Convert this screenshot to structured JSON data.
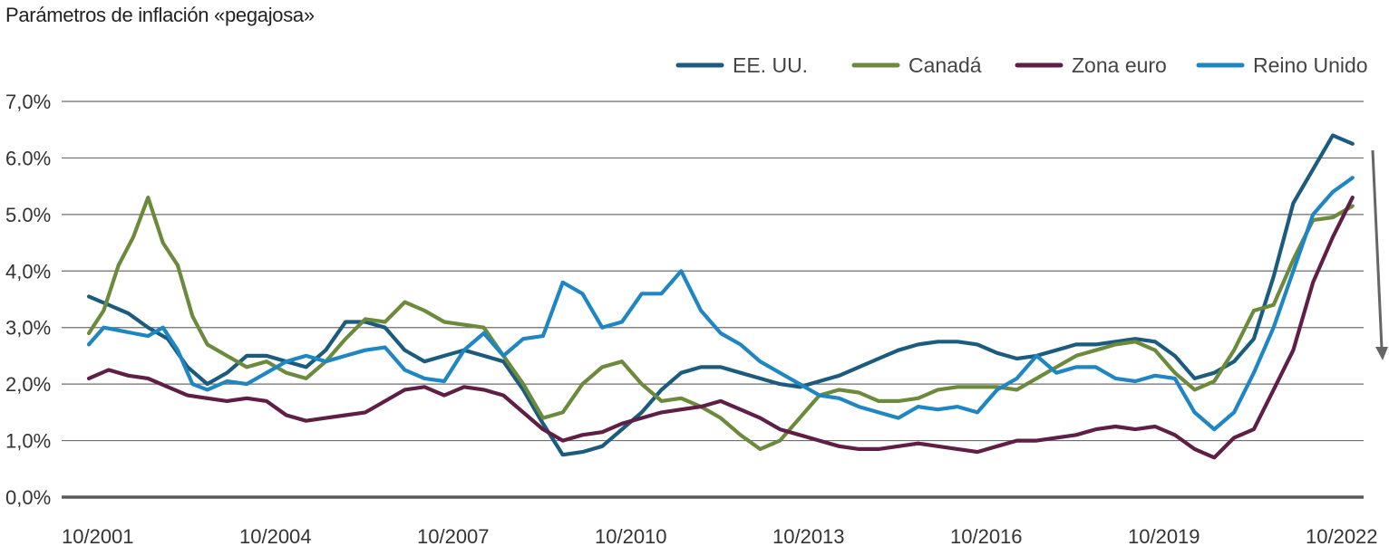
{
  "chart_data": {
    "type": "line",
    "title": "Parámetros de inflación «pegajosa»",
    "xlabel": "",
    "ylabel": "",
    "ylim": [
      0,
      7
    ],
    "y_ticks": [
      "0,0%",
      "1,0%",
      "2,0%",
      "3,0%",
      "4,0%",
      "5.0%",
      "6.0%",
      "7,0%"
    ],
    "x_ticks": [
      "10/2001",
      "10/2004",
      "10/2007",
      "10/2010",
      "10/2013",
      "10/2016",
      "10/2019",
      "10/2022"
    ],
    "grid": "horizontal",
    "legend_position": "top-right",
    "annotations": [
      "down-arrow"
    ],
    "series": [
      {
        "name": "EE. UU.",
        "color": "#1b5c7e",
        "points": [
          [
            "2001-10",
            3.55
          ],
          [
            "2002-02",
            3.4
          ],
          [
            "2002-06",
            3.25
          ],
          [
            "2002-10",
            3.0
          ],
          [
            "2003-02",
            2.8
          ],
          [
            "2003-06",
            2.3
          ],
          [
            "2003-10",
            2.0
          ],
          [
            "2004-02",
            2.2
          ],
          [
            "2004-06",
            2.5
          ],
          [
            "2004-10",
            2.5
          ],
          [
            "2005-02",
            2.4
          ],
          [
            "2005-06",
            2.3
          ],
          [
            "2005-10",
            2.6
          ],
          [
            "2006-02",
            3.1
          ],
          [
            "2006-06",
            3.1
          ],
          [
            "2006-10",
            3.0
          ],
          [
            "2007-02",
            2.6
          ],
          [
            "2007-06",
            2.4
          ],
          [
            "2007-10",
            2.5
          ],
          [
            "2008-02",
            2.6
          ],
          [
            "2008-06",
            2.5
          ],
          [
            "2008-10",
            2.4
          ],
          [
            "2009-02",
            1.9
          ],
          [
            "2009-06",
            1.3
          ],
          [
            "2009-10",
            0.75
          ],
          [
            "2010-02",
            0.8
          ],
          [
            "2010-06",
            0.9
          ],
          [
            "2010-10",
            1.2
          ],
          [
            "2011-02",
            1.5
          ],
          [
            "2011-06",
            1.9
          ],
          [
            "2011-10",
            2.2
          ],
          [
            "2012-02",
            2.3
          ],
          [
            "2012-06",
            2.3
          ],
          [
            "2012-10",
            2.2
          ],
          [
            "2013-02",
            2.1
          ],
          [
            "2013-06",
            2.0
          ],
          [
            "2013-10",
            1.95
          ],
          [
            "2014-02",
            2.05
          ],
          [
            "2014-06",
            2.15
          ],
          [
            "2014-10",
            2.3
          ],
          [
            "2015-02",
            2.45
          ],
          [
            "2015-06",
            2.6
          ],
          [
            "2015-10",
            2.7
          ],
          [
            "2016-02",
            2.75
          ],
          [
            "2016-06",
            2.75
          ],
          [
            "2016-10",
            2.7
          ],
          [
            "2017-02",
            2.55
          ],
          [
            "2017-06",
            2.45
          ],
          [
            "2017-10",
            2.5
          ],
          [
            "2018-02",
            2.6
          ],
          [
            "2018-06",
            2.7
          ],
          [
            "2018-10",
            2.7
          ],
          [
            "2019-02",
            2.75
          ],
          [
            "2019-06",
            2.8
          ],
          [
            "2019-10",
            2.75
          ],
          [
            "2020-02",
            2.5
          ],
          [
            "2020-06",
            2.1
          ],
          [
            "2020-10",
            2.2
          ],
          [
            "2021-02",
            2.4
          ],
          [
            "2021-06",
            2.8
          ],
          [
            "2021-10",
            3.9
          ],
          [
            "2022-02",
            5.2
          ],
          [
            "2022-06",
            5.8
          ],
          [
            "2022-10",
            6.4
          ],
          [
            "2023-02",
            6.25
          ]
        ]
      },
      {
        "name": "Canadá",
        "color": "#6b8a3c",
        "points": [
          [
            "2001-10",
            2.9
          ],
          [
            "2002-01",
            3.3
          ],
          [
            "2002-04",
            4.1
          ],
          [
            "2002-07",
            4.6
          ],
          [
            "2002-10",
            5.3
          ],
          [
            "2003-01",
            4.5
          ],
          [
            "2003-04",
            4.1
          ],
          [
            "2003-07",
            3.2
          ],
          [
            "2003-10",
            2.7
          ],
          [
            "2004-02",
            2.5
          ],
          [
            "2004-06",
            2.3
          ],
          [
            "2004-10",
            2.4
          ],
          [
            "2005-02",
            2.2
          ],
          [
            "2005-06",
            2.1
          ],
          [
            "2005-10",
            2.4
          ],
          [
            "2006-02",
            2.8
          ],
          [
            "2006-06",
            3.15
          ],
          [
            "2006-10",
            3.1
          ],
          [
            "2007-02",
            3.45
          ],
          [
            "2007-06",
            3.3
          ],
          [
            "2007-10",
            3.1
          ],
          [
            "2008-02",
            3.05
          ],
          [
            "2008-06",
            3.0
          ],
          [
            "2008-10",
            2.5
          ],
          [
            "2009-02",
            2.0
          ],
          [
            "2009-06",
            1.4
          ],
          [
            "2009-10",
            1.5
          ],
          [
            "2010-02",
            2.0
          ],
          [
            "2010-06",
            2.3
          ],
          [
            "2010-10",
            2.4
          ],
          [
            "2011-02",
            2.0
          ],
          [
            "2011-06",
            1.7
          ],
          [
            "2011-10",
            1.75
          ],
          [
            "2012-02",
            1.6
          ],
          [
            "2012-06",
            1.4
          ],
          [
            "2012-10",
            1.1
          ],
          [
            "2013-02",
            0.85
          ],
          [
            "2013-06",
            1.0
          ],
          [
            "2013-10",
            1.4
          ],
          [
            "2014-02",
            1.8
          ],
          [
            "2014-06",
            1.9
          ],
          [
            "2014-10",
            1.85
          ],
          [
            "2015-02",
            1.7
          ],
          [
            "2015-06",
            1.7
          ],
          [
            "2015-10",
            1.75
          ],
          [
            "2016-02",
            1.9
          ],
          [
            "2016-06",
            1.95
          ],
          [
            "2016-10",
            1.95
          ],
          [
            "2017-02",
            1.95
          ],
          [
            "2017-06",
            1.9
          ],
          [
            "2017-10",
            2.1
          ],
          [
            "2018-02",
            2.3
          ],
          [
            "2018-06",
            2.5
          ],
          [
            "2018-10",
            2.6
          ],
          [
            "2019-02",
            2.7
          ],
          [
            "2019-06",
            2.75
          ],
          [
            "2019-10",
            2.6
          ],
          [
            "2020-02",
            2.2
          ],
          [
            "2020-06",
            1.9
          ],
          [
            "2020-10",
            2.05
          ],
          [
            "2021-02",
            2.6
          ],
          [
            "2021-06",
            3.3
          ],
          [
            "2021-10",
            3.4
          ],
          [
            "2022-02",
            4.2
          ],
          [
            "2022-06",
            4.9
          ],
          [
            "2022-10",
            4.95
          ],
          [
            "2023-02",
            5.15
          ]
        ]
      },
      {
        "name": "Zona euro",
        "color": "#5e1e45",
        "points": [
          [
            "2001-10",
            2.1
          ],
          [
            "2002-02",
            2.25
          ],
          [
            "2002-06",
            2.15
          ],
          [
            "2002-10",
            2.1
          ],
          [
            "2003-02",
            1.95
          ],
          [
            "2003-06",
            1.8
          ],
          [
            "2003-10",
            1.75
          ],
          [
            "2004-02",
            1.7
          ],
          [
            "2004-06",
            1.75
          ],
          [
            "2004-10",
            1.7
          ],
          [
            "2005-02",
            1.45
          ],
          [
            "2005-06",
            1.35
          ],
          [
            "2005-10",
            1.4
          ],
          [
            "2006-02",
            1.45
          ],
          [
            "2006-06",
            1.5
          ],
          [
            "2006-10",
            1.7
          ],
          [
            "2007-02",
            1.9
          ],
          [
            "2007-06",
            1.95
          ],
          [
            "2007-10",
            1.8
          ],
          [
            "2008-02",
            1.95
          ],
          [
            "2008-06",
            1.9
          ],
          [
            "2008-10",
            1.8
          ],
          [
            "2009-02",
            1.5
          ],
          [
            "2009-06",
            1.2
          ],
          [
            "2009-10",
            1.0
          ],
          [
            "2010-02",
            1.1
          ],
          [
            "2010-06",
            1.15
          ],
          [
            "2010-10",
            1.3
          ],
          [
            "2011-02",
            1.4
          ],
          [
            "2011-06",
            1.5
          ],
          [
            "2011-10",
            1.55
          ],
          [
            "2012-02",
            1.6
          ],
          [
            "2012-06",
            1.7
          ],
          [
            "2012-10",
            1.55
          ],
          [
            "2013-02",
            1.4
          ],
          [
            "2013-06",
            1.2
          ],
          [
            "2013-10",
            1.1
          ],
          [
            "2014-02",
            1.0
          ],
          [
            "2014-06",
            0.9
          ],
          [
            "2014-10",
            0.85
          ],
          [
            "2015-02",
            0.85
          ],
          [
            "2015-06",
            0.9
          ],
          [
            "2015-10",
            0.95
          ],
          [
            "2016-02",
            0.9
          ],
          [
            "2016-06",
            0.85
          ],
          [
            "2016-10",
            0.8
          ],
          [
            "2017-02",
            0.9
          ],
          [
            "2017-06",
            1.0
          ],
          [
            "2017-10",
            1.0
          ],
          [
            "2018-02",
            1.05
          ],
          [
            "2018-06",
            1.1
          ],
          [
            "2018-10",
            1.2
          ],
          [
            "2019-02",
            1.25
          ],
          [
            "2019-06",
            1.2
          ],
          [
            "2019-10",
            1.25
          ],
          [
            "2020-02",
            1.1
          ],
          [
            "2020-06",
            0.85
          ],
          [
            "2020-10",
            0.7
          ],
          [
            "2021-02",
            1.05
          ],
          [
            "2021-06",
            1.2
          ],
          [
            "2021-10",
            1.9
          ],
          [
            "2022-02",
            2.6
          ],
          [
            "2022-06",
            3.8
          ],
          [
            "2022-10",
            4.6
          ],
          [
            "2023-02",
            5.3
          ]
        ]
      },
      {
        "name": "Reino Unido",
        "color": "#1d86c3",
        "points": [
          [
            "2001-10",
            2.7
          ],
          [
            "2002-01",
            3.0
          ],
          [
            "2002-04",
            2.95
          ],
          [
            "2002-07",
            2.9
          ],
          [
            "2002-10",
            2.85
          ],
          [
            "2003-01",
            3.0
          ],
          [
            "2003-04",
            2.6
          ],
          [
            "2003-07",
            2.0
          ],
          [
            "2003-10",
            1.9
          ],
          [
            "2004-02",
            2.05
          ],
          [
            "2004-06",
            2.0
          ],
          [
            "2004-10",
            2.2
          ],
          [
            "2005-02",
            2.4
          ],
          [
            "2005-06",
            2.5
          ],
          [
            "2005-10",
            2.4
          ],
          [
            "2006-02",
            2.5
          ],
          [
            "2006-06",
            2.6
          ],
          [
            "2006-10",
            2.65
          ],
          [
            "2007-02",
            2.25
          ],
          [
            "2007-06",
            2.1
          ],
          [
            "2007-10",
            2.05
          ],
          [
            "2008-02",
            2.6
          ],
          [
            "2008-06",
            2.9
          ],
          [
            "2008-10",
            2.5
          ],
          [
            "2009-02",
            2.8
          ],
          [
            "2009-06",
            2.85
          ],
          [
            "2009-10",
            3.8
          ],
          [
            "2010-02",
            3.6
          ],
          [
            "2010-06",
            3.0
          ],
          [
            "2010-10",
            3.1
          ],
          [
            "2011-02",
            3.6
          ],
          [
            "2011-06",
            3.6
          ],
          [
            "2011-10",
            4.0
          ],
          [
            "2012-02",
            3.3
          ],
          [
            "2012-06",
            2.9
          ],
          [
            "2012-10",
            2.7
          ],
          [
            "2013-02",
            2.4
          ],
          [
            "2013-06",
            2.2
          ],
          [
            "2013-10",
            2.0
          ],
          [
            "2014-02",
            1.8
          ],
          [
            "2014-06",
            1.75
          ],
          [
            "2014-10",
            1.6
          ],
          [
            "2015-02",
            1.5
          ],
          [
            "2015-06",
            1.4
          ],
          [
            "2015-10",
            1.6
          ],
          [
            "2016-02",
            1.55
          ],
          [
            "2016-06",
            1.6
          ],
          [
            "2016-10",
            1.5
          ],
          [
            "2017-02",
            1.9
          ],
          [
            "2017-06",
            2.1
          ],
          [
            "2017-10",
            2.5
          ],
          [
            "2018-02",
            2.2
          ],
          [
            "2018-06",
            2.3
          ],
          [
            "2018-10",
            2.3
          ],
          [
            "2019-02",
            2.1
          ],
          [
            "2019-06",
            2.05
          ],
          [
            "2019-10",
            2.15
          ],
          [
            "2020-02",
            2.1
          ],
          [
            "2020-06",
            1.5
          ],
          [
            "2020-10",
            1.2
          ],
          [
            "2021-02",
            1.5
          ],
          [
            "2021-06",
            2.2
          ],
          [
            "2021-10",
            3.0
          ],
          [
            "2022-02",
            4.0
          ],
          [
            "2022-06",
            5.0
          ],
          [
            "2022-10",
            5.4
          ],
          [
            "2023-02",
            5.65
          ]
        ]
      }
    ]
  }
}
